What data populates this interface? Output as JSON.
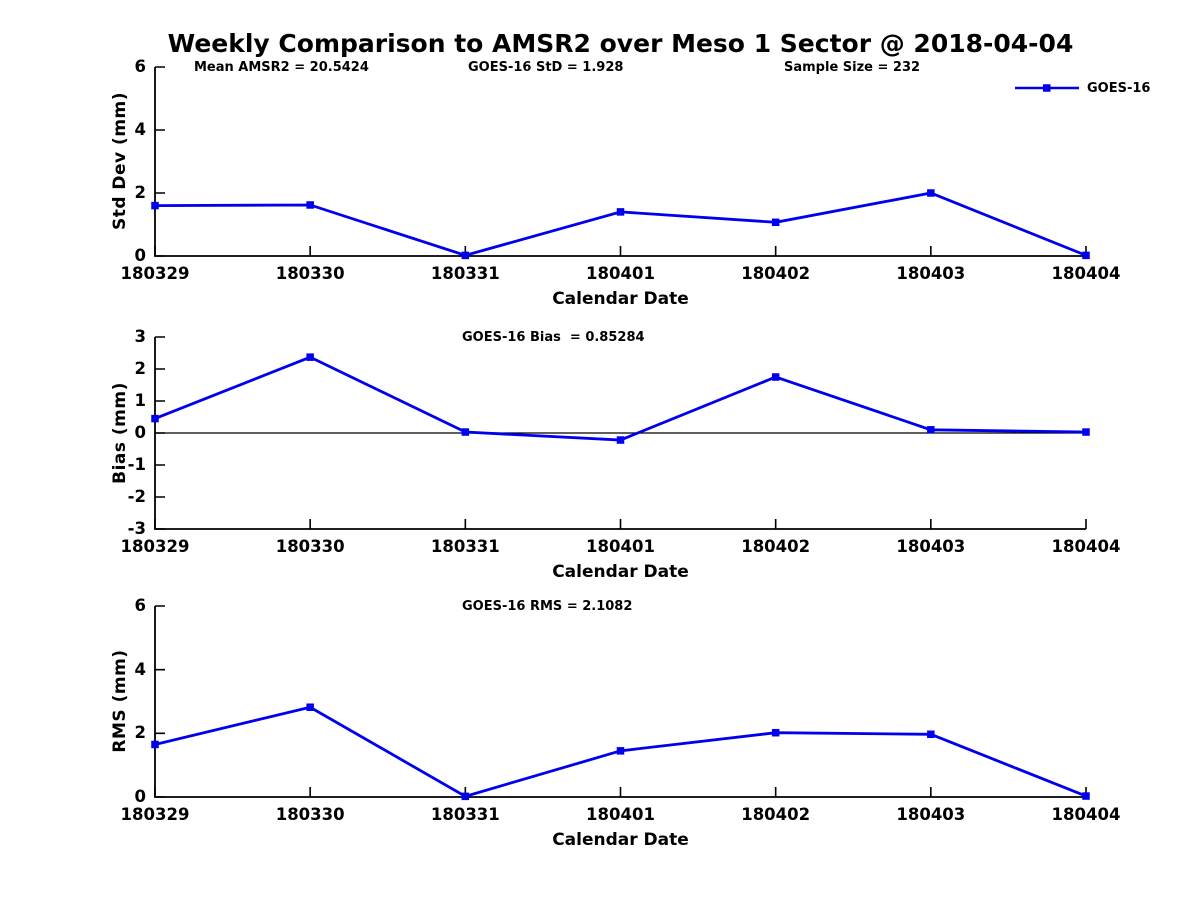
{
  "title": "Weekly Comparison to AMSR2 over Meso 1 Sector @ 2018-04-04",
  "colors": {
    "series": "#0000ee",
    "axis": "#000000",
    "text": "#000000",
    "background": "#ffffff"
  },
  "legend": {
    "label": "GOES-16",
    "position": "top-right"
  },
  "chart_data": [
    {
      "type": "line",
      "categories": [
        "180329",
        "180330",
        "180331",
        "180401",
        "180402",
        "180403",
        "180404"
      ],
      "series": [
        {
          "name": "GOES-16",
          "values": [
            1.6,
            1.62,
            0.02,
            1.4,
            1.07,
            2.0,
            0.02
          ]
        }
      ],
      "xlabel": "Calendar Date",
      "ylabel": "Std Dev (mm)",
      "ylim": [
        0,
        6
      ],
      "yticks": [
        0,
        2,
        4,
        6
      ],
      "grid": false,
      "annotations": [
        {
          "text": "Mean AMSR2 = 20.5424"
        },
        {
          "text": "GOES-16 StD = 1.928"
        },
        {
          "text": "Sample Size = 232"
        }
      ]
    },
    {
      "type": "line",
      "categories": [
        "180329",
        "180330",
        "180331",
        "180401",
        "180402",
        "180403",
        "180404"
      ],
      "series": [
        {
          "name": "GOES-16",
          "values": [
            0.45,
            2.37,
            0.03,
            -0.22,
            1.75,
            0.1,
            0.03
          ]
        }
      ],
      "xlabel": "Calendar Date",
      "ylabel": "Bias (mm)",
      "ylim": [
        -3,
        3
      ],
      "yticks": [
        -3,
        -2,
        -1,
        0,
        1,
        2,
        3
      ],
      "grid": false,
      "zero_line": true,
      "annotations": [
        {
          "text": "GOES-16 Bias  = 0.85284"
        }
      ]
    },
    {
      "type": "line",
      "categories": [
        "180329",
        "180330",
        "180331",
        "180401",
        "180402",
        "180403",
        "180404"
      ],
      "series": [
        {
          "name": "GOES-16",
          "values": [
            1.65,
            2.82,
            0.02,
            1.45,
            2.02,
            1.97,
            0.03
          ]
        }
      ],
      "xlabel": "Calendar Date",
      "ylabel": "RMS (mm)",
      "ylim": [
        0,
        6
      ],
      "yticks": [
        0,
        2,
        4,
        6
      ],
      "grid": false,
      "annotations": [
        {
          "text": "GOES-16 RMS = 2.1082"
        }
      ]
    }
  ]
}
